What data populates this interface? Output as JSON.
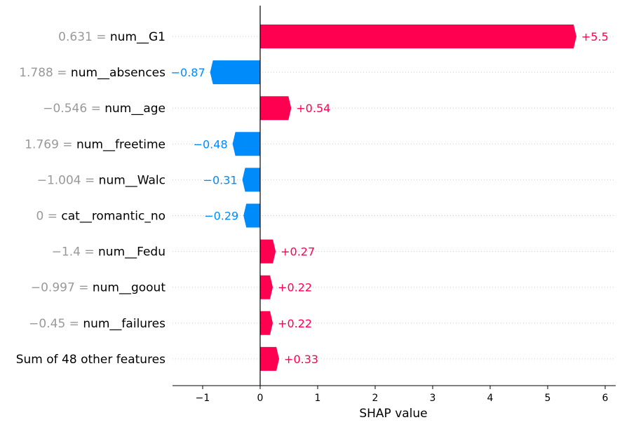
{
  "chart_data": {
    "type": "bar",
    "orientation": "horizontal",
    "title": "",
    "xlabel": "SHAP value",
    "ylabel": "",
    "xlim": [
      -1.5,
      6.1
    ],
    "x_ticks": [
      -1,
      0,
      1,
      2,
      3,
      4,
      5,
      6
    ],
    "x_tick_labels": [
      "−1",
      "0",
      "1",
      "2",
      "3",
      "4",
      "5",
      "6"
    ],
    "grid": "dotted horizontal lines per row",
    "legend": "none",
    "colors": {
      "positive": "#ff0051",
      "negative": "#008bfb",
      "feature_value_text": "#999999",
      "feature_name_text": "#000000"
    },
    "features": [
      {
        "value_text": "0.631 = ",
        "name": "num__G1",
        "shap": 5.5,
        "label": "+5.5"
      },
      {
        "value_text": "1.788 = ",
        "name": "num__absences",
        "shap": -0.87,
        "label": "−0.87"
      },
      {
        "value_text": "−0.546 = ",
        "name": "num__age",
        "shap": 0.54,
        "label": "+0.54"
      },
      {
        "value_text": "1.769 = ",
        "name": "num__freetime",
        "shap": -0.48,
        "label": "−0.48"
      },
      {
        "value_text": "−1.004 = ",
        "name": "num__Walc",
        "shap": -0.31,
        "label": "−0.31"
      },
      {
        "value_text": "0 = ",
        "name": "cat__romantic_no",
        "shap": -0.29,
        "label": "−0.29"
      },
      {
        "value_text": "−1.4 = ",
        "name": "num__Fedu",
        "shap": 0.27,
        "label": "+0.27"
      },
      {
        "value_text": "−0.997 = ",
        "name": "num__goout",
        "shap": 0.22,
        "label": "+0.22"
      },
      {
        "value_text": "−0.45 = ",
        "name": "num__failures",
        "shap": 0.22,
        "label": "+0.22"
      },
      {
        "value_text": "",
        "name": "Sum of 48 other features",
        "shap": 0.33,
        "label": "+0.33"
      }
    ]
  }
}
